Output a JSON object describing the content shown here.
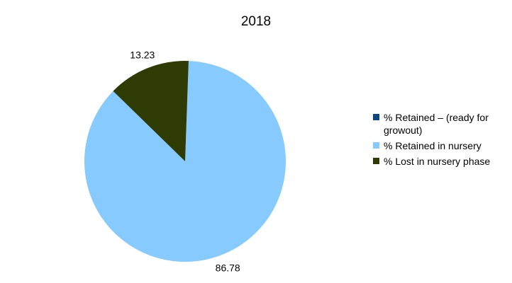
{
  "chart_data": {
    "type": "pie",
    "title": "2018",
    "start_angle_deg": 2,
    "slices": [
      {
        "label": "% Retained – (ready for growout)",
        "value": 0,
        "color": "#0b4780"
      },
      {
        "label": "% Retained in nursery",
        "value": 86.78,
        "color": "#87cbfe"
      },
      {
        "label": "% Lost in nursery phase",
        "value": 13.23,
        "color": "#2e3b04"
      }
    ],
    "data_labels": [
      "86.78",
      "13.23"
    ],
    "legend_position": "right"
  }
}
